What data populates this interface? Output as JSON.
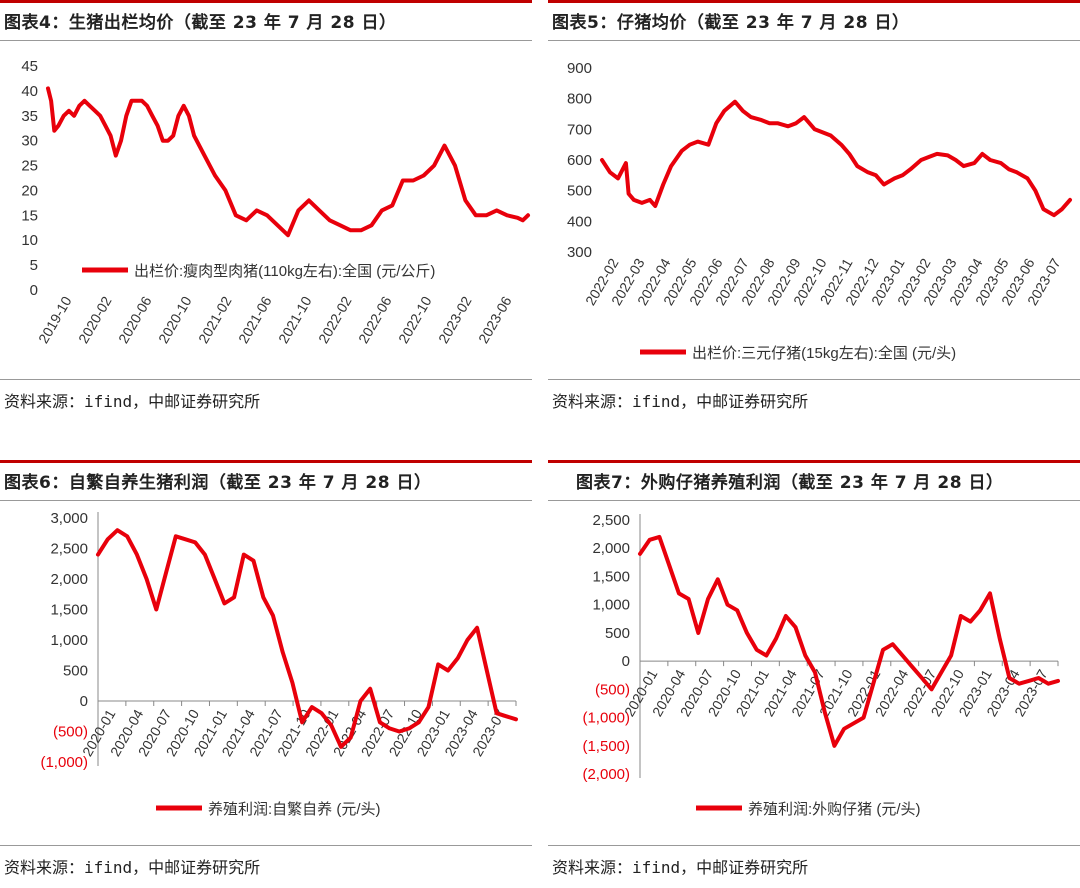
{
  "panels": [
    {
      "title": "图表4：生猪出栏均价（截至 23 年 7 月 28 日）",
      "source": "资料来源：ifind，中邮证券研究所"
    },
    {
      "title": "图表5：仔猪均价（截至 23 年 7 月 28 日）",
      "source": "资料来源：ifind，中邮证券研究所"
    },
    {
      "title": "图表6：自繁自养生猪利润（截至 23 年 7 月 28 日）",
      "source": "资料来源：ifind，中邮证券研究所"
    },
    {
      "title": "图表7：外购仔猪养殖利润（截至 23 年 7 月 28 日）",
      "source": "资料来源：ifind，中邮证券研究所"
    }
  ],
  "colors": {
    "line": "#e8000b",
    "accent": "#c00000",
    "negative": "#e8000b"
  },
  "chart_data": [
    {
      "type": "line",
      "title": "生猪出栏均价",
      "ylim": [
        0,
        45
      ],
      "yticks": [
        "0",
        "5",
        "10",
        "15",
        "20",
        "25",
        "30",
        "35",
        "40",
        "45"
      ],
      "yticks_red": [],
      "xticks": [
        "2019-10",
        "2020-02",
        "2020-06",
        "2020-10",
        "2021-02",
        "2021-06",
        "2021-10",
        "2022-02",
        "2022-06",
        "2022-10",
        "2023-02",
        "2023-06"
      ],
      "xrange": [
        0,
        46
      ],
      "xaxis_at_zero": false,
      "legend_label": "出栏价:瘦肉型肉猪(110kg左右):全国 (元/公斤)",
      "legend_pos": "lower-middle",
      "series": [
        {
          "name": "出栏价:瘦肉型肉猪(110kg左右):全国",
          "x": [
            0,
            0.3,
            0.6,
            1,
            1.5,
            2,
            2.5,
            3,
            3.5,
            4,
            4.5,
            5,
            5.5,
            6,
            6.5,
            7,
            7.5,
            8,
            8.5,
            9,
            9.5,
            10,
            10.5,
            11,
            11.5,
            12,
            12.5,
            13,
            13.5,
            14,
            15,
            16,
            17,
            18,
            19,
            20,
            21,
            22,
            23,
            24,
            25,
            26,
            27,
            28,
            29,
            30,
            31,
            32,
            33,
            34,
            35,
            36,
            37,
            38,
            39,
            40,
            41,
            42,
            43,
            44,
            45,
            45.5,
            46
          ],
          "y": [
            40.5,
            38,
            32,
            33,
            35,
            36,
            35,
            37,
            38,
            37,
            36,
            35,
            33,
            31,
            27,
            30,
            35,
            38,
            38,
            38,
            37,
            35,
            33,
            30,
            30,
            31,
            35,
            37,
            35,
            31,
            27,
            23,
            20,
            15,
            14,
            16,
            15,
            13,
            11,
            16,
            18,
            16,
            14,
            13,
            12,
            12,
            13,
            16,
            17,
            22,
            22,
            23,
            25,
            29,
            25,
            18,
            15,
            15,
            16,
            15,
            14.5,
            14,
            15
          ]
        }
      ]
    },
    {
      "type": "line",
      "title": "仔猪均价",
      "ylim": [
        300,
        900
      ],
      "yticks": [
        "300",
        "400",
        "500",
        "600",
        "700",
        "800",
        "900"
      ],
      "yticks_red": [],
      "xticks": [
        "2022-02",
        "2022-03",
        "2022-04",
        "2022-05",
        "2022-06",
        "2022-07",
        "2022-08",
        "2022-09",
        "2022-10",
        "2022-11",
        "2022-12",
        "2023-01",
        "2023-02",
        "2023-03",
        "2023-04",
        "2023-05",
        "2023-06",
        "2023-07"
      ],
      "xrange": [
        0,
        17.6
      ],
      "xaxis_at_zero": false,
      "legend_label": "出栏价:三元仔猪(15kg左右):全国 (元/头)",
      "legend_pos": "below",
      "series": [
        {
          "name": "出栏价:三元仔猪(15kg左右):全国",
          "x": [
            0,
            0.3,
            0.6,
            0.9,
            1,
            1.2,
            1.5,
            1.8,
            2,
            2.3,
            2.6,
            3,
            3.3,
            3.6,
            4,
            4.3,
            4.6,
            5,
            5.3,
            5.6,
            6,
            6.3,
            6.6,
            7,
            7.3,
            7.6,
            8,
            8.3,
            8.6,
            9,
            9.3,
            9.6,
            10,
            10.3,
            10.6,
            11,
            11.3,
            11.6,
            12,
            12.3,
            12.6,
            13,
            13.3,
            13.6,
            14,
            14.3,
            14.6,
            15,
            15.3,
            15.6,
            16,
            16.3,
            16.6,
            17,
            17.3,
            17.6
          ],
          "y": [
            600,
            560,
            540,
            590,
            490,
            470,
            460,
            470,
            450,
            520,
            580,
            630,
            650,
            660,
            650,
            720,
            760,
            790,
            760,
            740,
            730,
            720,
            720,
            710,
            720,
            740,
            700,
            690,
            680,
            650,
            620,
            580,
            560,
            550,
            520,
            540,
            550,
            570,
            600,
            610,
            620,
            615,
            600,
            580,
            590,
            620,
            600,
            590,
            570,
            560,
            540,
            500,
            440,
            420,
            440,
            470
          ]
        }
      ]
    },
    {
      "type": "line",
      "title": "自繁自养生猪利润",
      "ylim": [
        -1000,
        3000
      ],
      "yticks": [
        "(1,000)",
        "(500)",
        "0",
        "500",
        "1,000",
        "1,500",
        "2,000",
        "2,500",
        "3,000"
      ],
      "yticks_red": [
        "(1,000)",
        "(500)"
      ],
      "xticks": [
        "2020-01",
        "2020-04",
        "2020-07",
        "2020-10",
        "2021-01",
        "2021-04",
        "2021-07",
        "2021-10",
        "2022-01",
        "2022-04",
        "2022-07",
        "2022-10",
        "2023-01",
        "2023-04",
        "2023-07"
      ],
      "xrange": [
        0,
        43
      ],
      "xaxis_at_zero": true,
      "legend_label": "养殖利润:自繁自养 (元/头)",
      "legend_pos": "below",
      "series": [
        {
          "name": "养殖利润:自繁自养",
          "x": [
            0,
            1,
            2,
            3,
            4,
            5,
            6,
            7,
            8,
            9,
            10,
            11,
            12,
            13,
            14,
            15,
            16,
            17,
            18,
            19,
            20,
            21,
            22,
            23,
            24,
            25,
            26,
            27,
            28,
            29,
            30,
            31,
            32,
            33,
            34,
            35,
            36,
            37,
            38,
            39,
            40,
            41,
            42,
            43
          ],
          "y": [
            2400,
            2650,
            2800,
            2700,
            2400,
            2000,
            1500,
            2100,
            2700,
            2650,
            2600,
            2400,
            2000,
            1600,
            1700,
            2400,
            2300,
            1700,
            1400,
            800,
            300,
            -350,
            -100,
            -200,
            -400,
            -750,
            -600,
            0,
            200,
            -350,
            -450,
            -500,
            -450,
            -350,
            -100,
            600,
            500,
            700,
            1000,
            1200,
            500,
            -200,
            -250,
            -300
          ]
        }
      ]
    },
    {
      "type": "line",
      "title": "外购仔猪养殖利润",
      "ylim": [
        -2000,
        2500
      ],
      "yticks": [
        "(2,000)",
        "(1,500)",
        "(1,000)",
        "(500)",
        "0",
        "500",
        "1,000",
        "1,500",
        "2,000",
        "2,500"
      ],
      "yticks_red": [
        "(2,000)",
        "(1,500)",
        "(1,000)",
        "(500)"
      ],
      "xticks": [
        "2020-01",
        "2020-04",
        "2020-07",
        "2020-10",
        "2021-01",
        "2021-04",
        "2021-07",
        "2021-10",
        "2022-01",
        "2022-04",
        "2022-07",
        "2022-10",
        "2023-01",
        "2023-04",
        "2023-07"
      ],
      "xrange": [
        0,
        43
      ],
      "xaxis_at_zero": true,
      "legend_label": "养殖利润:外购仔猪 (元/头)",
      "legend_pos": "below",
      "series": [
        {
          "name": "养殖利润:外购仔猪",
          "x": [
            0,
            1,
            2,
            3,
            4,
            5,
            6,
            7,
            8,
            9,
            10,
            11,
            12,
            13,
            14,
            15,
            16,
            17,
            18,
            19,
            20,
            21,
            22,
            23,
            24,
            25,
            26,
            27,
            28,
            29,
            30,
            31,
            32,
            33,
            34,
            35,
            36,
            37,
            38,
            39,
            40,
            41,
            42,
            43
          ],
          "y": [
            1900,
            2150,
            2200,
            1700,
            1200,
            1100,
            500,
            1100,
            1450,
            1000,
            900,
            500,
            200,
            100,
            400,
            800,
            600,
            100,
            -200,
            -900,
            -1500,
            -1200,
            -1100,
            -1000,
            -400,
            200,
            300,
            100,
            -100,
            -300,
            -500,
            -200,
            100,
            800,
            700,
            900,
            1200,
            400,
            -300,
            -400,
            -350,
            -300,
            -400,
            -350
          ]
        }
      ]
    }
  ]
}
